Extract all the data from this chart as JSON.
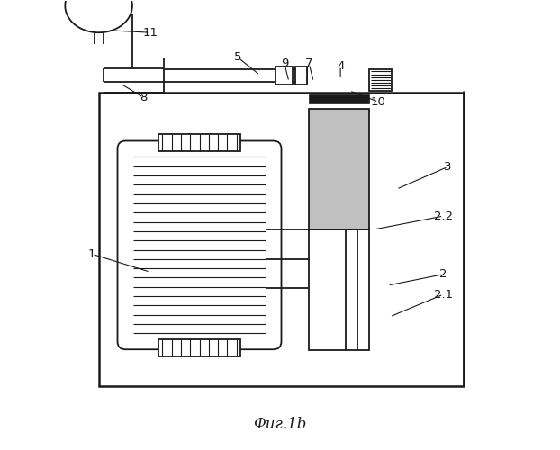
{
  "title": "Фиг.1b",
  "background": "#ffffff",
  "line_color": "#1a1a1a",
  "gray_fill": "#c0c0c0",
  "figure_size": [
    6.22,
    5.0
  ],
  "dpi": 100,
  "labels": {
    "1": [
      0.08,
      0.435,
      0.21,
      0.395
    ],
    "2": [
      0.865,
      0.39,
      0.74,
      0.365
    ],
    "2.1": [
      0.865,
      0.345,
      0.745,
      0.295
    ],
    "2.2": [
      0.865,
      0.52,
      0.71,
      0.49
    ],
    "3": [
      0.875,
      0.63,
      0.76,
      0.58
    ],
    "4": [
      0.635,
      0.855,
      0.635,
      0.825
    ],
    "5": [
      0.405,
      0.875,
      0.455,
      0.835
    ],
    "7": [
      0.565,
      0.86,
      0.575,
      0.82
    ],
    "8": [
      0.195,
      0.785,
      0.145,
      0.815
    ],
    "9": [
      0.51,
      0.86,
      0.52,
      0.82
    ],
    "10": [
      0.72,
      0.775,
      0.655,
      0.8
    ],
    "11": [
      0.21,
      0.93,
      0.115,
      0.935
    ]
  }
}
